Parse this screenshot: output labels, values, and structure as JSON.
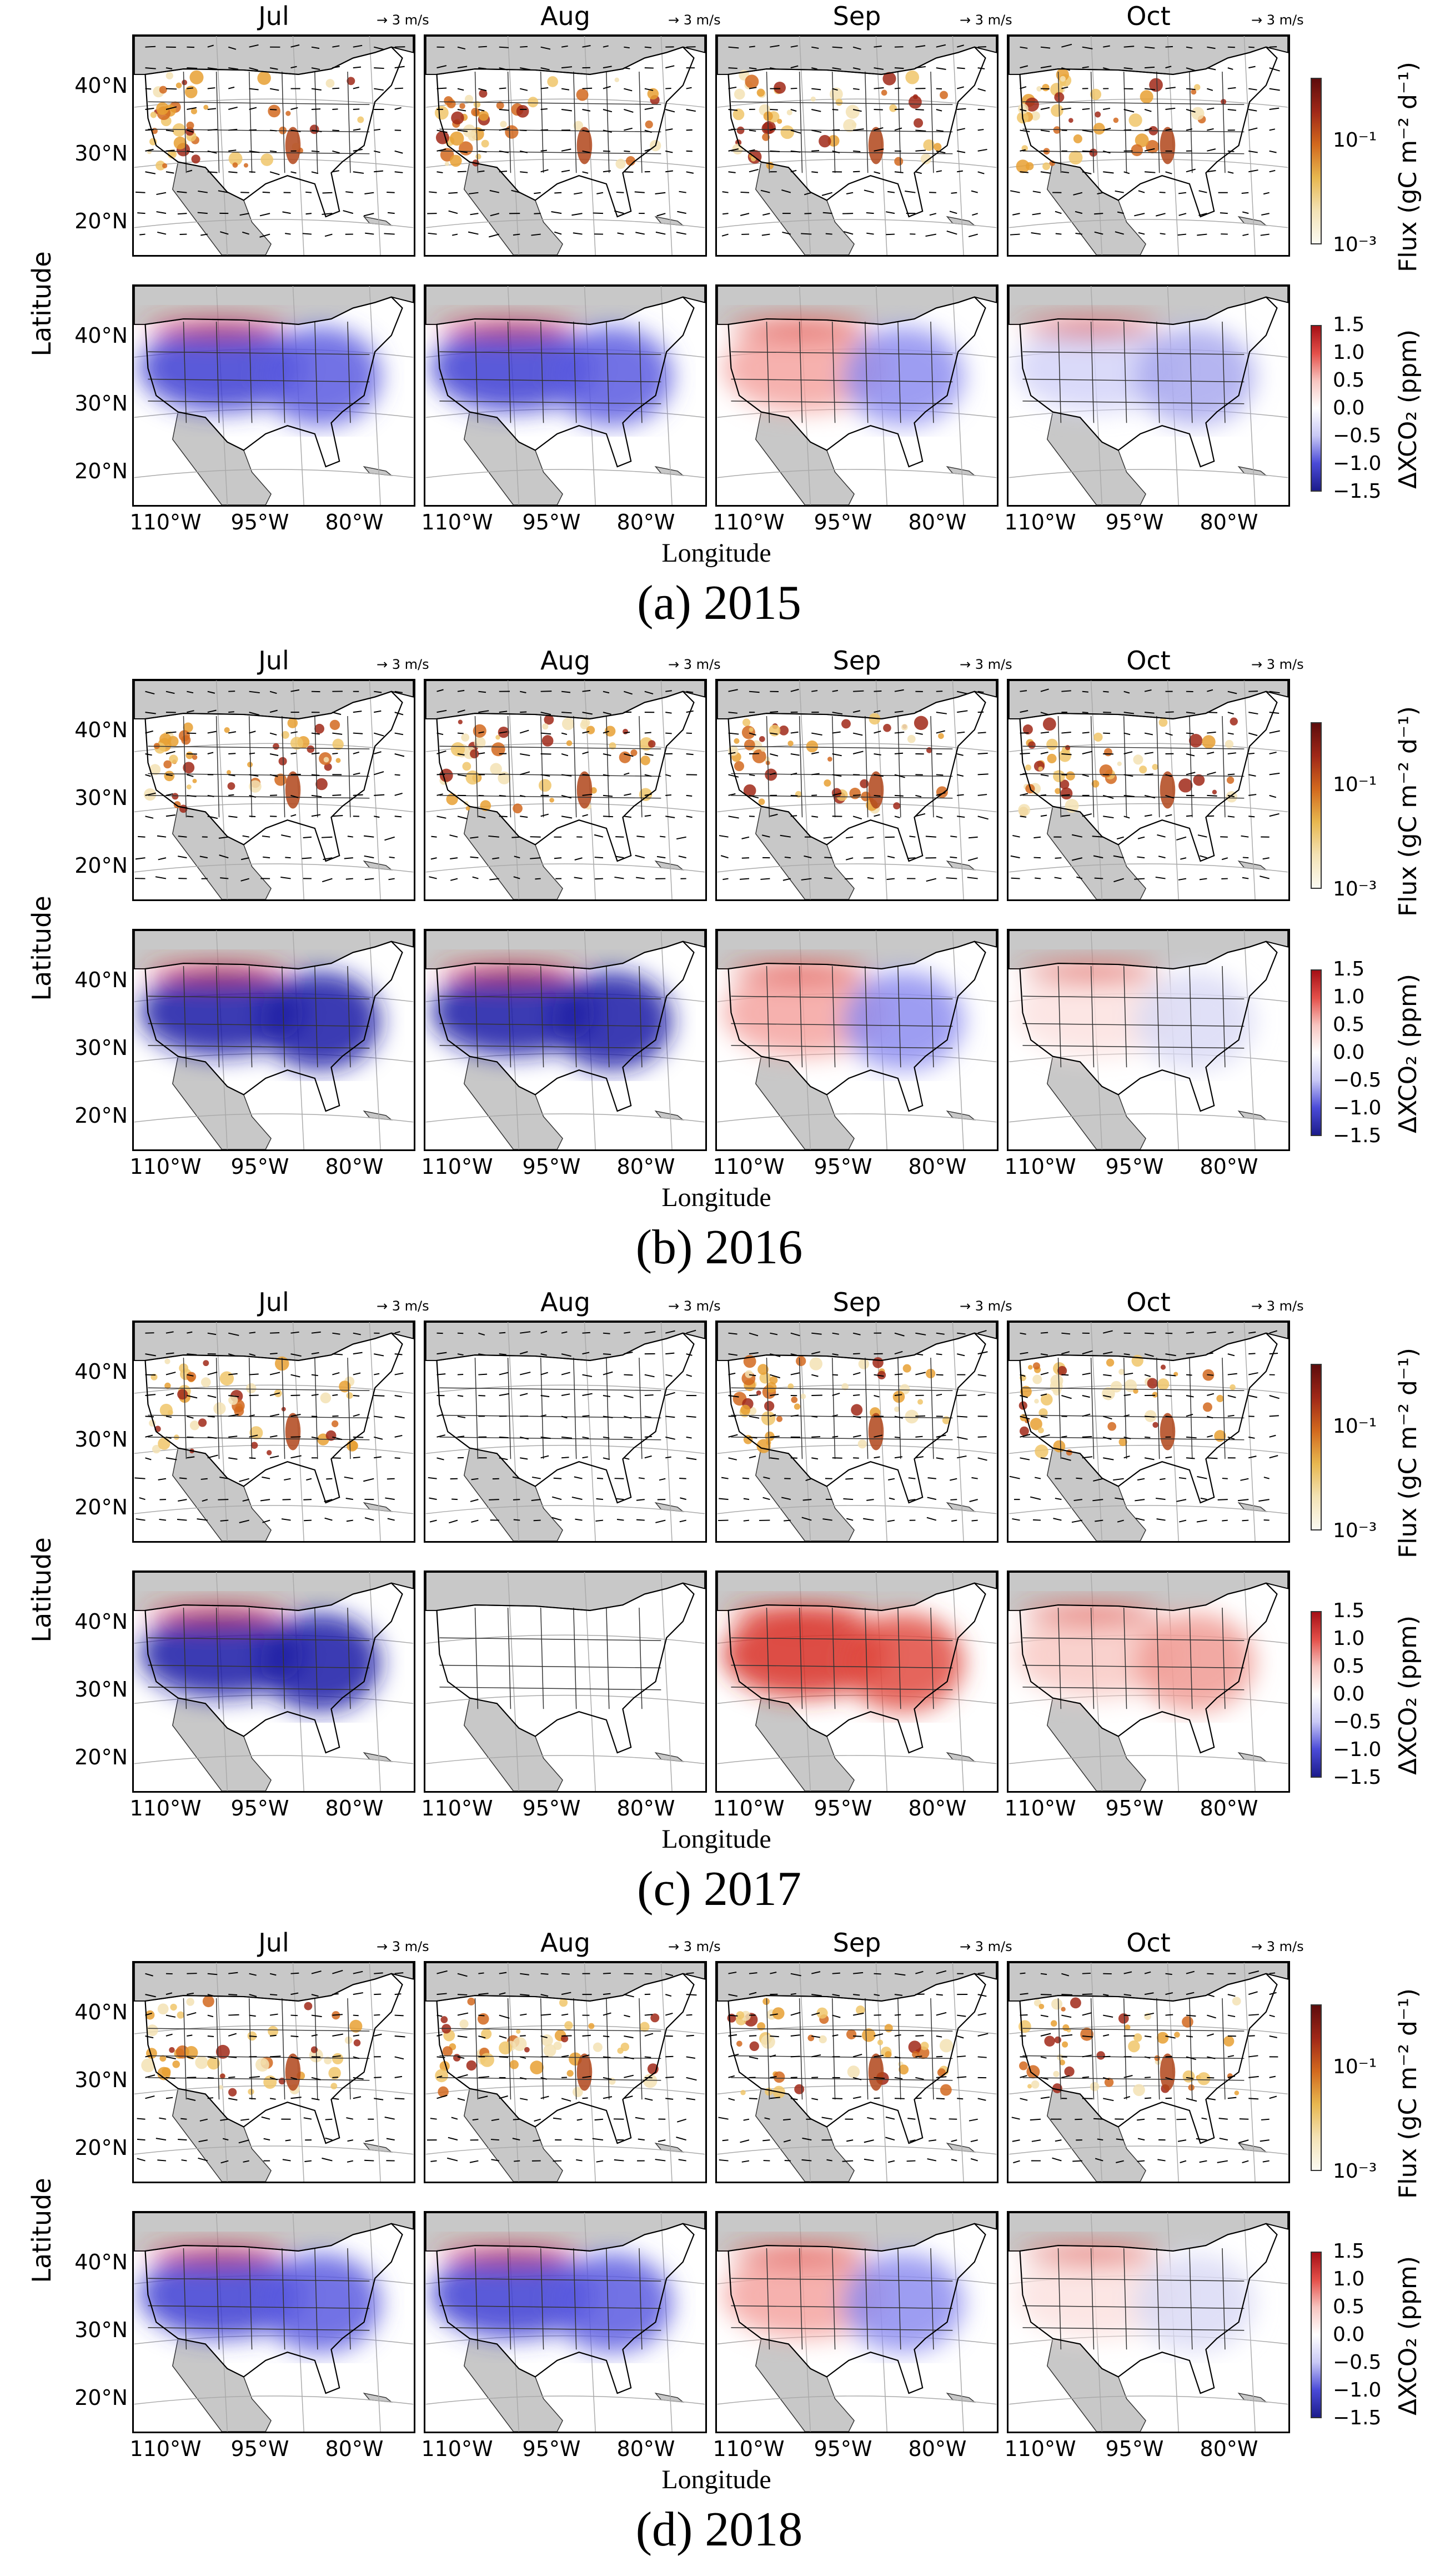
{
  "chart_data": {
    "type": "heatmap",
    "months": [
      "Jul",
      "Aug",
      "Sep",
      "Oct"
    ],
    "wind_key": "3 m/s",
    "lat_ticks": [
      "40°N",
      "30°N",
      "20°N"
    ],
    "lon_ticks": [
      "110°W",
      "95°W",
      "80°W"
    ],
    "ylabel": "Latitude",
    "xlabel": "Longitude",
    "flux_colorbar": {
      "label": "Flux (gC m⁻² d⁻¹)",
      "scale": "log",
      "ticks": [
        "10⁻¹",
        "10⁻³"
      ]
    },
    "dxco2_colorbar": {
      "label": "ΔXCO₂ (ppm)",
      "range": [
        -1.5,
        1.5
      ],
      "ticks": [
        "1.5",
        "1.0",
        "0.5",
        "0.0",
        "−0.5",
        "−1.0",
        "−1.5"
      ]
    },
    "years": [
      {
        "caption": "(a) 2015",
        "dxco2_mean_sign": [
          "negative",
          "negative",
          "mixed",
          "slightly negative"
        ]
      },
      {
        "caption": "(b) 2016",
        "dxco2_mean_sign": [
          "strongly negative",
          "strongly negative",
          "mixed",
          "near zero"
        ]
      },
      {
        "caption": "(c) 2017",
        "dxco2_mean_sign": [
          "strongly negative",
          "no data",
          "positive",
          "slightly positive"
        ]
      },
      {
        "caption": "(d) 2018",
        "dxco2_mean_sign": [
          "negative",
          "negative",
          "mixed",
          "near zero"
        ]
      }
    ],
    "colors": {
      "land_mask": "#c8c8c8",
      "flux_low": "#f3e2b4",
      "flux_high": "#7a1a0c",
      "dx_pos": "#d73027",
      "dx_neg": "#1a1aa6"
    }
  }
}
